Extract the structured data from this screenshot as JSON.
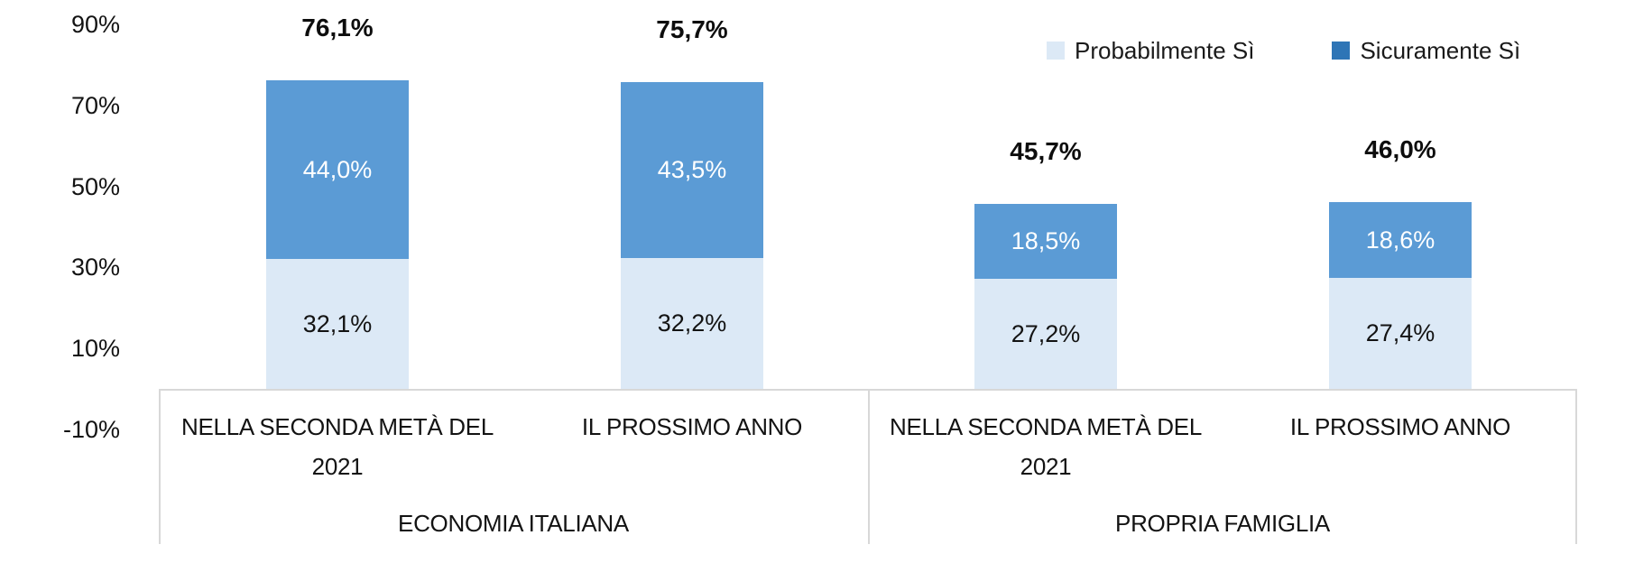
{
  "legend": {
    "items": [
      {
        "label": "Probabilmente Sì",
        "color": "#DCE9F6"
      },
      {
        "label": "Sicuramente Sì",
        "color": "#2E75B6"
      }
    ]
  },
  "chart_data": {
    "type": "bar",
    "stacked": true,
    "title": "",
    "xlabel": "",
    "ylabel": "",
    "grid": false,
    "legend_position": "top-right",
    "y_axis": {
      "ylim": [
        -10,
        90
      ],
      "ticks": [
        90,
        70,
        50,
        30,
        10,
        -10
      ],
      "tick_labels": [
        "90%",
        "70%",
        "50%",
        "30%",
        "10%",
        "-10%"
      ]
    },
    "groups": [
      {
        "label": "ECONOMIA ITALIANA",
        "categories": [
          "NELLA SECONDA METÀ DEL 2021",
          "IL PROSSIMO ANNO"
        ]
      },
      {
        "label": "PROPRIA FAMIGLIA",
        "categories": [
          "NELLA SECONDA METÀ DEL 2021",
          "IL PROSSIMO ANNO"
        ]
      }
    ],
    "series": [
      {
        "name": "Probabilmente Sì",
        "color": "#DCE9F6",
        "label_color": "#131313",
        "values": [
          32.1,
          32.2,
          27.2,
          27.4
        ],
        "labels": [
          "32,1%",
          "32,2%",
          "27,2%",
          "27,4%"
        ]
      },
      {
        "name": "Sicuramente Sì",
        "color": "#5B9BD5",
        "label_color": "#FFFFFF",
        "values": [
          44.0,
          43.5,
          18.5,
          18.6
        ],
        "labels": [
          "44,0%",
          "43,5%",
          "18,5%",
          "18,6%"
        ]
      }
    ],
    "totals": {
      "values": [
        76.1,
        75.7,
        45.7,
        46.0
      ],
      "labels": [
        "76,1%",
        "75,7%",
        "45,7%",
        "46,0%"
      ]
    },
    "axis_color": "#D8D8D8"
  }
}
